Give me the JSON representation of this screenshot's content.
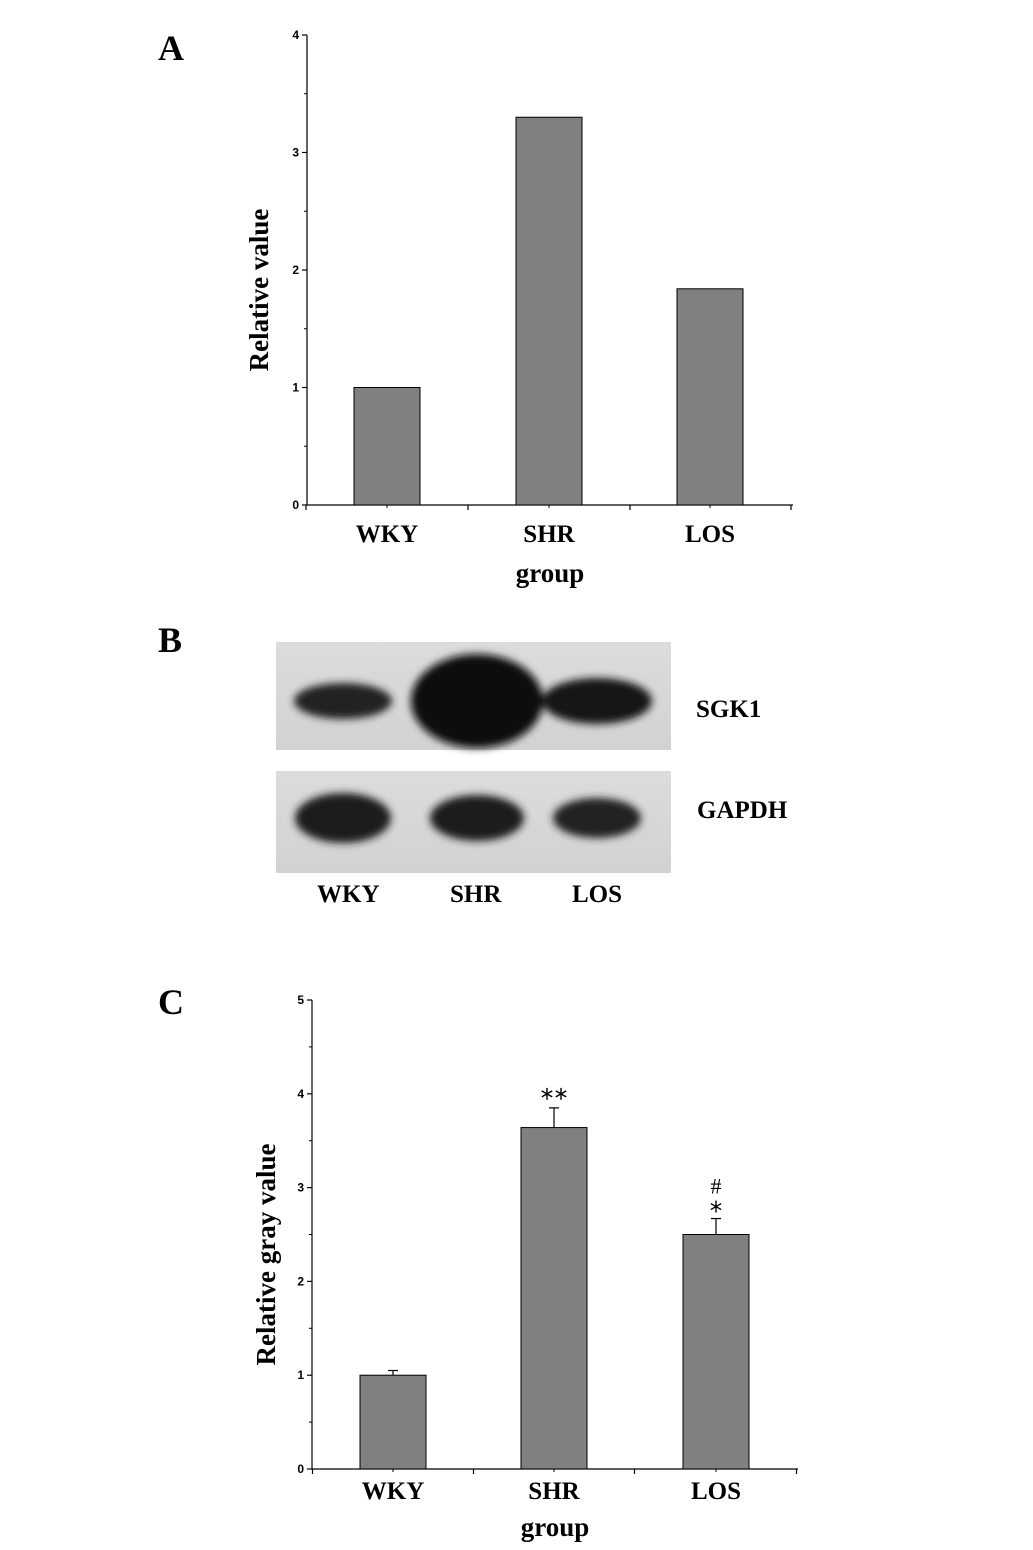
{
  "panels": {
    "a": {
      "letter": "A"
    },
    "b": {
      "letter": "B"
    },
    "c": {
      "letter": "C"
    }
  },
  "chart_data": [
    {
      "id": "A",
      "type": "bar",
      "categories": [
        "WKY",
        "SHR",
        "LOS"
      ],
      "values": [
        1.0,
        3.3,
        1.84
      ],
      "xlabel": "group",
      "ylabel": "Relative value",
      "ylim": [
        0,
        4
      ],
      "yticks": [
        "0",
        "1",
        "2",
        "3",
        "4"
      ],
      "bar_color": "#808080",
      "grid": false
    },
    {
      "id": "C",
      "type": "bar",
      "categories": [
        "WKY",
        "SHR",
        "LOS"
      ],
      "values": [
        1.0,
        3.64,
        2.5
      ],
      "errors": [
        0.05,
        0.21,
        0.17
      ],
      "annotations": [
        "",
        "**",
        "#*"
      ],
      "xlabel": "group",
      "ylabel": "Relative gray value",
      "ylim": [
        0,
        5
      ],
      "yticks": [
        "0",
        "1",
        "2",
        "3",
        "4",
        "5"
      ],
      "bar_color": "#808080",
      "grid": false
    }
  ],
  "blot": {
    "proteins": [
      "SGK1",
      "GAPDH"
    ],
    "lanes": [
      "WKY",
      "SHR",
      "LOS"
    ],
    "sgk1_band_intensity": [
      0.45,
      1.0,
      0.7
    ],
    "gapdh_band_intensity": [
      0.85,
      0.8,
      0.72
    ]
  }
}
